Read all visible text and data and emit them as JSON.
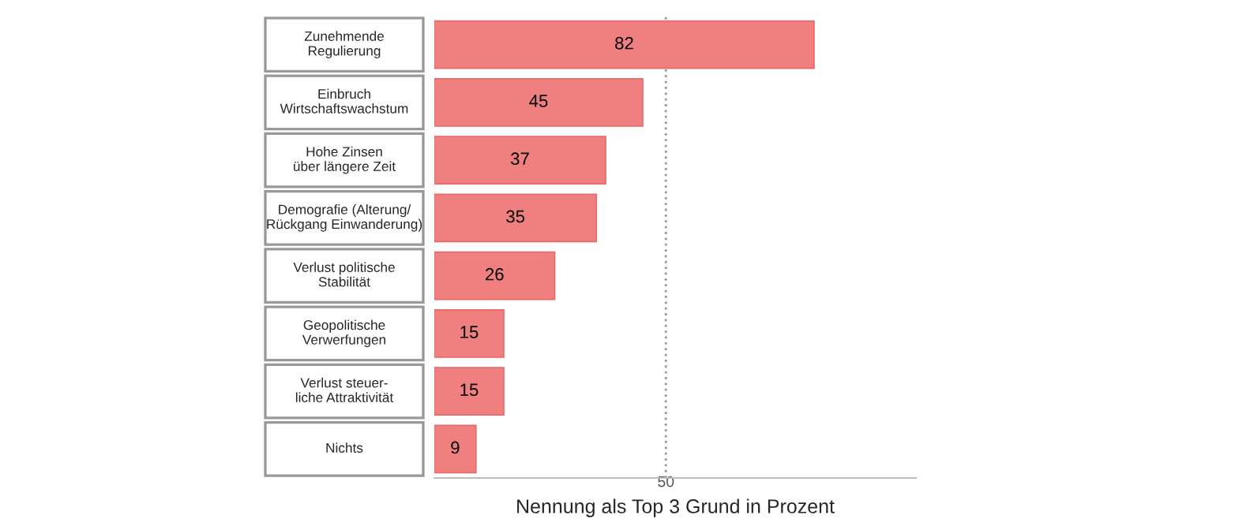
{
  "chart_data": {
    "type": "bar",
    "orientation": "horizontal",
    "categories": [
      "Zunehmende\nRegulierung",
      "Einbruch\nWirtschaftswachstum",
      "Hohe Zinsen\nüber längere Zeit",
      "Demografie (Alterung/\nRückgang Einwanderung)",
      "Verlust politische\nStabilität",
      "Geopolitische\nVerwerfungen",
      "Verlust steuer-\nliche Attraktivität",
      "Nichts"
    ],
    "values": [
      82,
      45,
      37,
      35,
      26,
      15,
      15,
      9
    ],
    "color": "#f08080",
    "data_labels": true,
    "xlabel": "Nennung als Top 3 Grund in Prozent",
    "xlim": [
      0,
      104
    ],
    "xticks": [
      50
    ],
    "ref_lines": [
      {
        "axis": "x",
        "value": 50,
        "color": "#999999",
        "line_style": "dotted"
      }
    ],
    "grid": false,
    "legend": false
  }
}
